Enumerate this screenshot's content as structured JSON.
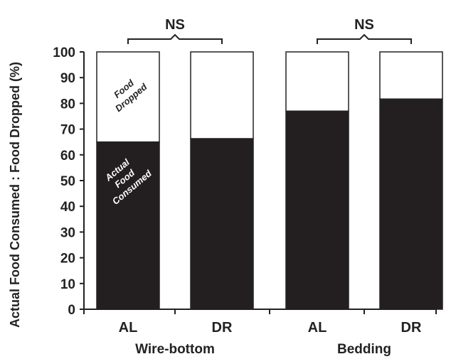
{
  "chart_data": {
    "type": "bar",
    "stacked": true,
    "ylabel": "Actual Food Consumed : Food Dropped (%)",
    "xlabel": "",
    "ylim": [
      0,
      100
    ],
    "yticks": [
      "0",
      "10",
      "20",
      "30",
      "40",
      "50",
      "60",
      "70",
      "80",
      "90",
      "100"
    ],
    "categories": [
      "AL",
      "DR",
      "AL",
      "DR"
    ],
    "groups": [
      {
        "label": "Wire-bottom",
        "significance": "NS"
      },
      {
        "label": "Bedding",
        "significance": "NS"
      }
    ],
    "series": [
      {
        "name": "Actual Food Consumed",
        "color": "#231f20",
        "values": [
          65,
          66.3,
          77,
          81.7
        ]
      },
      {
        "name": "Food Dropped",
        "color": "#ffffff",
        "values": [
          35,
          33.7,
          23,
          18.3
        ]
      }
    ],
    "annotations": {
      "consumed": [
        "Actual",
        "Food",
        "Consumed"
      ],
      "dropped": [
        "Food",
        "Dropped"
      ]
    },
    "grid": false,
    "legend": "none"
  }
}
